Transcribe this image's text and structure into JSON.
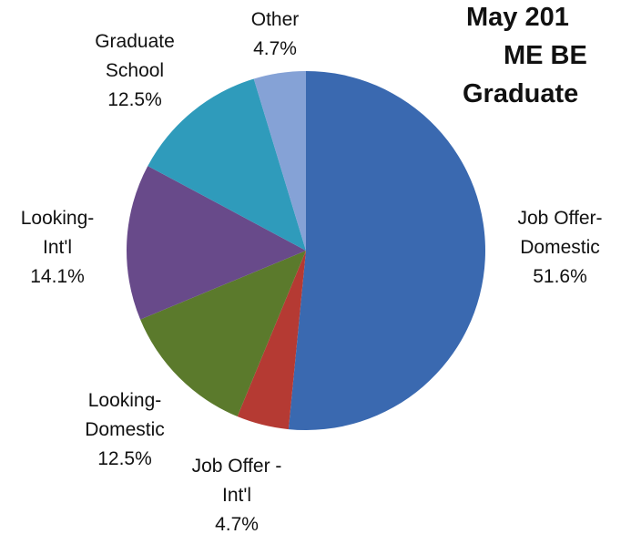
{
  "chart_data": {
    "type": "pie",
    "title_lines": [
      "May 201",
      "ME BE",
      "Graduate"
    ],
    "categories": [
      [
        "Job Offer-",
        "Domestic"
      ],
      [
        "Job Offer -",
        "Int'l"
      ],
      [
        "Looking-",
        "Domestic"
      ],
      [
        "Looking-",
        "Int'l"
      ],
      [
        "Graduate",
        "School"
      ],
      [
        "Other"
      ]
    ],
    "values": [
      51.6,
      4.7,
      12.5,
      14.1,
      12.5,
      4.7
    ],
    "value_labels": [
      "51.6%",
      "4.7%",
      "12.5%",
      "14.1%",
      "12.5%",
      "4.7%"
    ],
    "colors": [
      "#3a69b0",
      "#b53a33",
      "#5b7a2c",
      "#684a8a",
      "#2f9bbb",
      "#85a2d6"
    ]
  }
}
